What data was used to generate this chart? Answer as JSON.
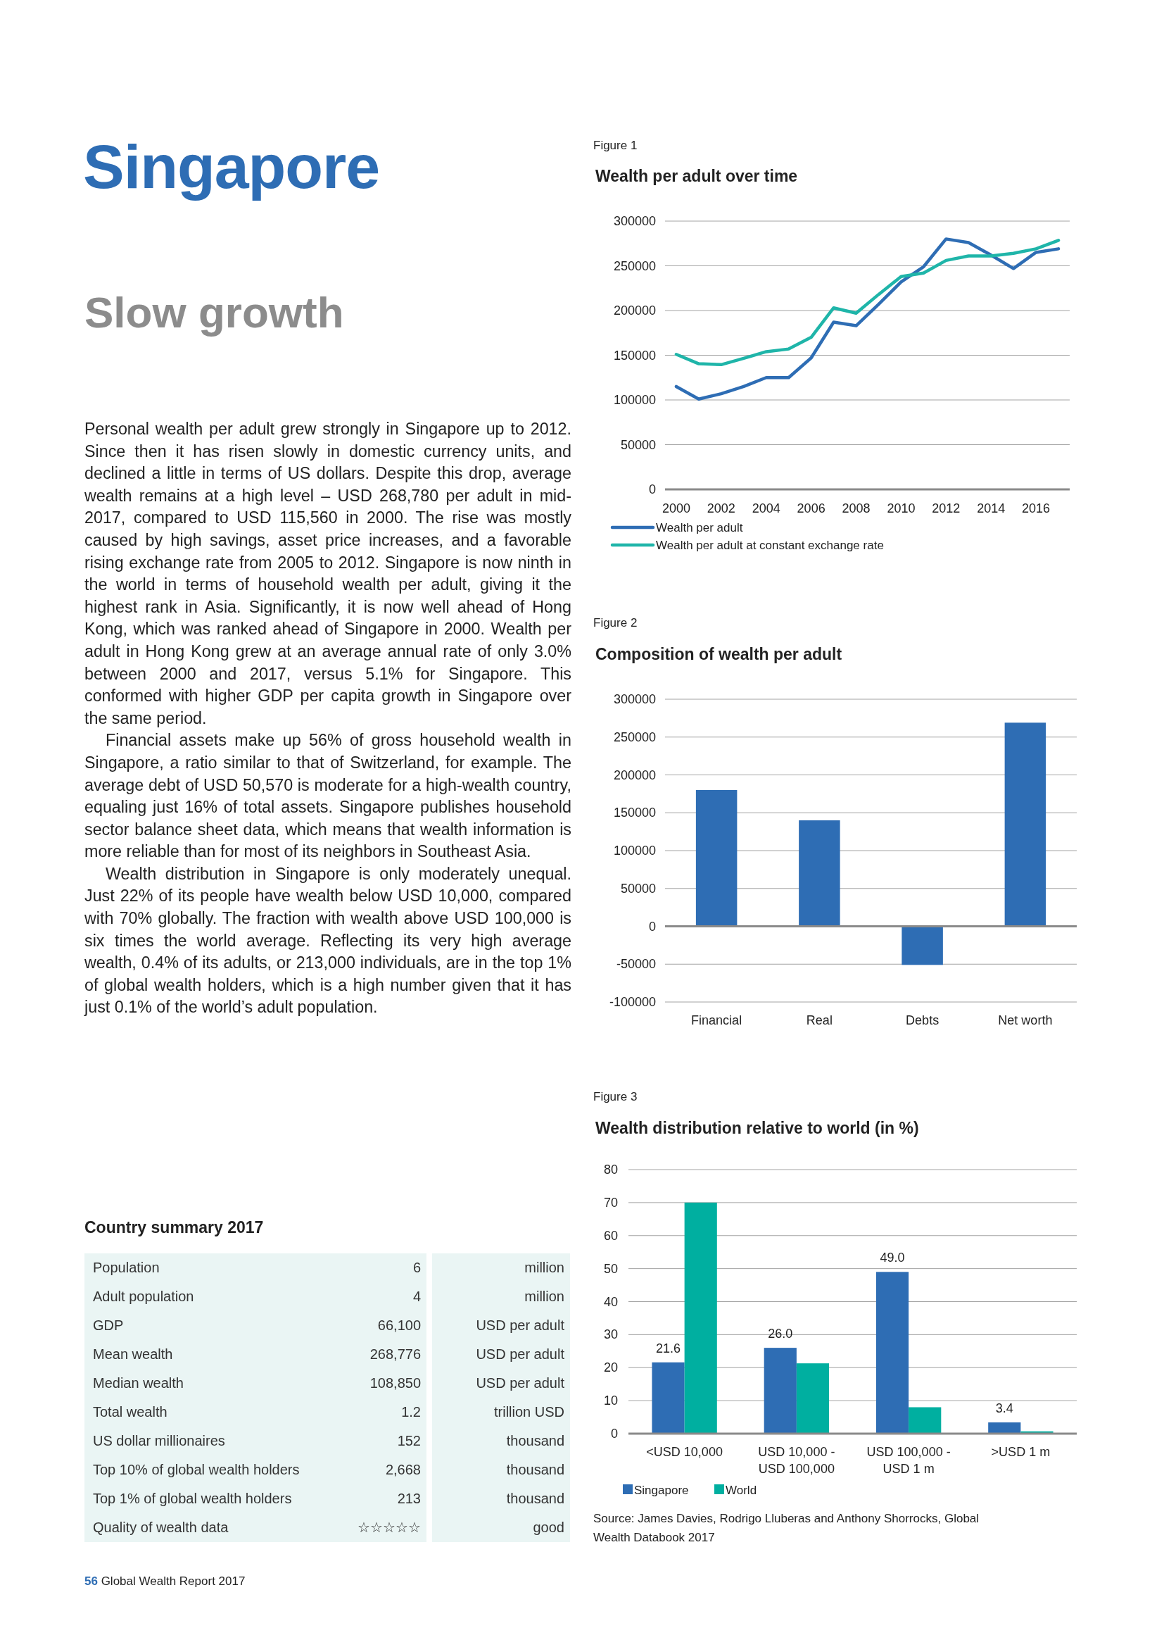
{
  "chart_data": [
    {
      "type": "other",
      "title": "Singapore",
      "subtitle": "Slow growth",
      "annotations": [
        "Personal wealth per adult grew strongly in Singapore up to 2012. Since then it has risen slowly in domestic currency units, and declined a little in terms of US dollars. Despite this drop, average wealth remains at a high level – USD 268,780 per adult in mid-2017, compared to USD 115,560 in 2000. The rise was mostly caused by high savings, asset price increases, and a favorable rising exchange rate from 2005 to 2012. Singapore is now ninth in the world in terms of household wealth per adult, giving it the highest rank in Asia. Significantly, it is now well ahead of Hong Kong, which was ranked ahead of Singapore in 2000. Wealth per adult in Hong Kong grew at an average annual rate of only 3.0% between 2000 and 2017, versus 5.1% for Singapore. This conformed with higher GDP per capita growth in Singapore over the same period.",
        "Financial assets make up 56% of gross household wealth in Singapore, a ratio similar to that of Switzerland, for example. The average debt of USD 50,570 is moderate for a high-wealth country, equaling just 16% of total assets. Singapore publishes household sector balance sheet data, which means that wealth information is more reliable than for most of its neighbors in Southeast Asia.",
        "Wealth distribution in Singapore is only moderately unequal. Just 22% of its people have wealth below USD 10,000, compared with 70% globally. The fraction with wealth above USD 100,000 is six times the world average. Reflecting its very high average wealth, 0.4% of its adults, or 213,000 individuals, are in the top 1% of global wealth holders, which is a high number given that it has just 0.1% of the world’s adult population.",
        "56 Global Wealth Report 2017"
      ]
    },
    {
      "type": "line",
      "subtitle": "Figure 1",
      "title": "Wealth per adult over time",
      "x": [
        2000,
        2001,
        2002,
        2003,
        2004,
        2005,
        2006,
        2007,
        2008,
        2009,
        2010,
        2011,
        2012,
        2013,
        2014,
        2015,
        2016,
        2017
      ],
      "xlim": [
        1999.5,
        2017.5
      ],
      "xticks": [
        2000,
        2002,
        2004,
        2006,
        2008,
        2010,
        2012,
        2014,
        2016
      ],
      "ylim": [
        0,
        300000
      ],
      "yticks": [
        0,
        50000,
        100000,
        150000,
        200000,
        250000,
        300000
      ],
      "grid": "y",
      "legend": "bottom",
      "marker": "none",
      "series": [
        {
          "name": "Wealth per adult",
          "color": "#2e6db4",
          "values": [
            115000,
            101000,
            107000,
            115000,
            125000,
            125000,
            147000,
            187000,
            183000,
            207000,
            232000,
            249000,
            280000,
            276000,
            262000,
            247000,
            265000,
            269000
          ]
        },
        {
          "name": "Wealth per adult at constant exchange rate",
          "color": "#1fb5a9",
          "values": [
            151000,
            140500,
            139500,
            146500,
            154000,
            157000,
            170000,
            203000,
            197000,
            218000,
            238000,
            242000,
            256000,
            261000,
            261000,
            264000,
            269000,
            278500
          ]
        }
      ]
    },
    {
      "type": "bar",
      "subtitle": "Figure 2",
      "title": "Composition of wealth per adult",
      "categories": [
        "Financial",
        "Real",
        "Debts",
        "Net worth"
      ],
      "ylim": [
        -100000,
        300000
      ],
      "yticks": [
        -100000,
        -50000,
        0,
        50000,
        100000,
        150000,
        200000,
        250000,
        300000
      ],
      "grid": "y",
      "legend": false,
      "series": [
        {
          "color": "#2e6db4",
          "values": [
            180000,
            140000,
            -51000,
            269000
          ]
        }
      ]
    },
    {
      "type": "bar",
      "subtitle": "Figure 3",
      "title": "Wealth distribution relative to world (in %)",
      "categories": [
        "<USD 10,000",
        "USD 10,000 - USD 100,000",
        "USD 100,000 - USD 1 m",
        ">USD 1 m"
      ],
      "ylim": [
        0,
        80
      ],
      "yticks": [
        0,
        10,
        20,
        30,
        40,
        50,
        60,
        70,
        80
      ],
      "grid": "y",
      "legend": "bottom left",
      "series": [
        {
          "name": "Singapore",
          "color": "#2e6db4",
          "values": [
            21.6,
            26.0,
            49.0,
            3.4
          ],
          "value_labels": [
            "21.6",
            "26.0",
            "49.0",
            "3.4"
          ]
        },
        {
          "name": "World",
          "color": "#00afa0",
          "values": [
            70,
            21.3,
            8.0,
            0.7
          ]
        }
      ],
      "annotations": [
        "Source: James Davies, Rodrigo Lluberas and Anthony Shorrocks, Global Wealth Databook 2017"
      ]
    },
    {
      "type": "other",
      "title": "Country summary 2017",
      "cell_labels": [
        [
          "Population",
          "6",
          "million"
        ],
        [
          "Adult population",
          "4",
          "million"
        ],
        [
          "GDP",
          "66,100",
          "USD per adult"
        ],
        [
          "Mean wealth",
          "268,776",
          "USD per adult"
        ],
        [
          "Median wealth",
          "108,850",
          "USD per adult"
        ],
        [
          "Total wealth",
          "1.2",
          "trillion USD"
        ],
        [
          "US dollar millionaires",
          "152",
          "thousand"
        ],
        [
          "Top 10% of global wealth holders",
          "2,668",
          "thousand"
        ],
        [
          "Top 1% of global wealth holders",
          "213",
          "thousand"
        ],
        [
          "Quality of wealth data",
          "☆☆☆☆☆",
          "good"
        ]
      ]
    }
  ]
}
